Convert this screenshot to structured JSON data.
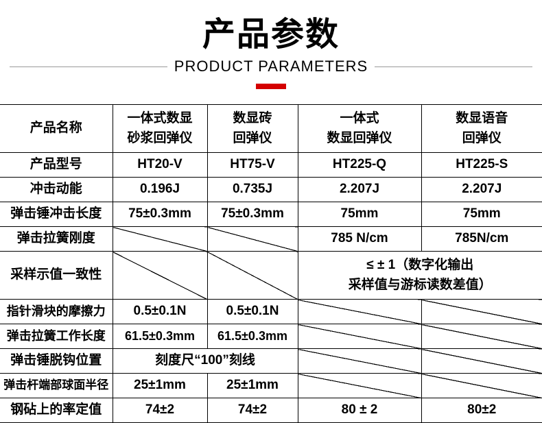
{
  "header": {
    "title_cn": "产品参数",
    "title_en": "PRODUCT PARAMETERS"
  },
  "table": {
    "row_product_name": {
      "label": "产品名称",
      "c1_l1": "一体式数显",
      "c1_l2": "砂浆回弹仪",
      "c2_l1": "数显砖",
      "c2_l2": "回弹仪",
      "c3_l1": "一体式",
      "c3_l2": "数显回弹仪",
      "c4_l1": "数显语音",
      "c4_l2": "回弹仪"
    },
    "row_model": {
      "label": "产品型号",
      "c1": "HT20-V",
      "c2": "HT75-V",
      "c3": "HT225-Q",
      "c4": "HT225-S"
    },
    "row_impact": {
      "label": "冲击动能",
      "c1": "0.196J",
      "c2": "0.735J",
      "c3": "2.207J",
      "c4": "2.207J"
    },
    "row_hammer_len": {
      "label": "弹击锤冲击长度",
      "c1": "75±0.3mm",
      "c2": "75±0.3mm",
      "c3": "75mm",
      "c4": "75mm"
    },
    "row_spring_stiff": {
      "label": "弹击拉簧刚度",
      "c3": "785 N/cm",
      "c4": "785N/cm"
    },
    "row_sampling": {
      "label": "采样示值一致性",
      "merged_l1": "≤ ± 1（数字化输出",
      "merged_l2": "采样值与游标读数差值）"
    },
    "row_friction": {
      "label": "指针滑块的摩擦力",
      "c1": "0.5±0.1N",
      "c2": "0.5±0.1N"
    },
    "row_spring_len": {
      "label": "弹击拉簧工作长度",
      "c1": "61.5±0.3mm",
      "c2": "61.5±0.3mm"
    },
    "row_hook_pos": {
      "label": "弹击锤脱钩位置",
      "merged": "刻度尺“100”刻线"
    },
    "row_radius": {
      "label": "弹击杆端部球面半径",
      "c1": "25±1mm",
      "c2": "25±1mm"
    },
    "row_rate": {
      "label": "钢砧上的率定值",
      "c1": "74±2",
      "c2": "74±2",
      "c3": "80 ± 2",
      "c4": "80±2"
    }
  },
  "style": {
    "accent_color": "#d40000",
    "border_color": "#000000",
    "background": "#ffffff",
    "font_cn_title": 48,
    "font_en_title": 22,
    "font_cell": 19
  }
}
